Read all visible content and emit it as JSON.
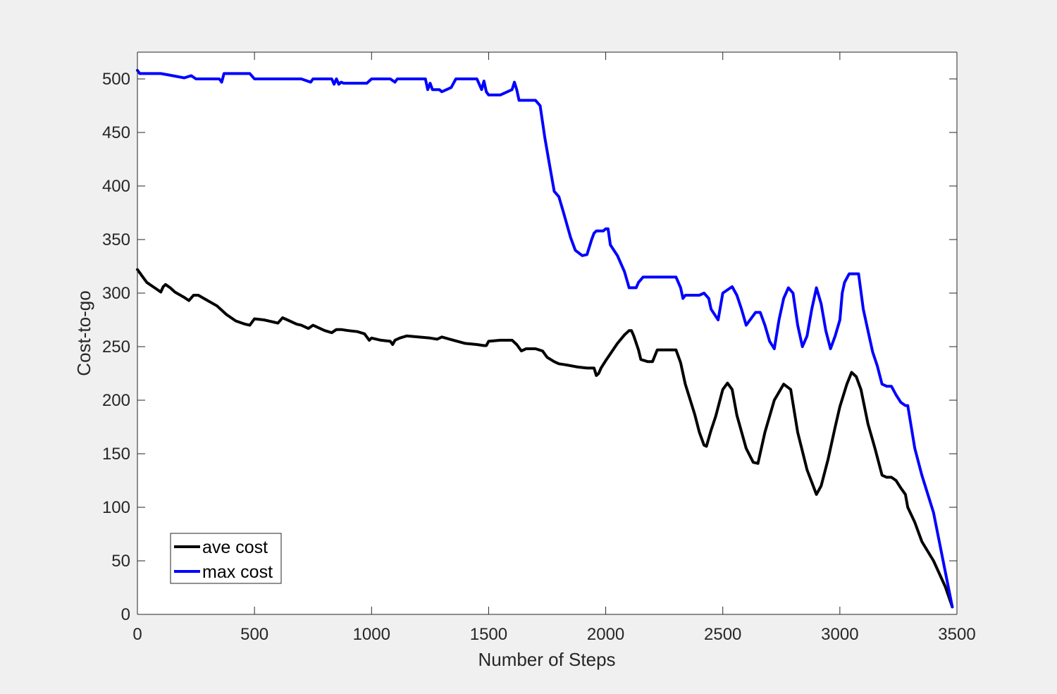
{
  "chart_data": {
    "type": "line",
    "title": "",
    "xlabel": "Number of Steps",
    "ylabel": "Cost-to-go",
    "xlim": [
      0,
      3500
    ],
    "ylim": [
      0,
      525
    ],
    "xticks": [
      0,
      500,
      1000,
      1500,
      2000,
      2500,
      3000,
      3500
    ],
    "yticks": [
      0,
      50,
      100,
      150,
      200,
      250,
      300,
      350,
      400,
      450,
      500
    ],
    "grid": false,
    "legend_position": "bottom-left",
    "series": [
      {
        "name": "ave cost",
        "color": "#000000",
        "x": [
          0,
          20,
          40,
          60,
          80,
          100,
          110,
          120,
          140,
          160,
          200,
          220,
          240,
          260,
          300,
          340,
          380,
          420,
          460,
          480,
          500,
          540,
          580,
          600,
          620,
          640,
          680,
          700,
          730,
          750,
          780,
          800,
          830,
          850,
          870,
          900,
          940,
          970,
          980,
          990,
          1000,
          1040,
          1080,
          1090,
          1100,
          1120,
          1150,
          1200,
          1250,
          1280,
          1300,
          1350,
          1400,
          1450,
          1480,
          1490,
          1500,
          1550,
          1600,
          1620,
          1640,
          1660,
          1700,
          1730,
          1750,
          1780,
          1800,
          1830,
          1880,
          1920,
          1950,
          1960,
          1970,
          1980,
          2000,
          2050,
          2080,
          2100,
          2110,
          2120,
          2140,
          2150,
          2180,
          2200,
          2220,
          2250,
          2300,
          2320,
          2340,
          2380,
          2400,
          2420,
          2430,
          2450,
          2470,
          2500,
          2520,
          2540,
          2560,
          2600,
          2630,
          2650,
          2680,
          2720,
          2760,
          2790,
          2820,
          2860,
          2900,
          2920,
          2950,
          2980,
          3000,
          3030,
          3050,
          3070,
          3090,
          3120,
          3150,
          3180,
          3200,
          3220,
          3240,
          3260,
          3280,
          3290,
          3320,
          3350,
          3400,
          3450,
          3480
        ],
        "values": [
          322,
          316,
          310,
          307,
          304,
          301,
          306,
          308,
          305,
          301,
          296,
          293,
          298,
          298,
          293,
          288,
          280,
          274,
          271,
          270,
          276,
          275,
          273,
          272,
          277,
          275,
          271,
          270,
          267,
          270,
          267,
          265,
          263,
          266,
          266,
          265,
          264,
          262,
          259,
          256,
          258,
          256,
          255,
          252,
          256,
          258,
          260,
          259,
          258,
          257,
          259,
          256,
          253,
          252,
          251,
          251,
          255,
          256,
          256,
          252,
          246,
          248,
          248,
          246,
          240,
          236,
          234,
          233,
          231,
          230,
          230,
          223,
          225,
          230,
          237,
          253,
          261,
          265,
          265,
          260,
          247,
          238,
          236,
          236,
          247,
          247,
          247,
          235,
          215,
          187,
          170,
          158,
          157,
          172,
          185,
          210,
          216,
          210,
          186,
          155,
          142,
          141,
          170,
          200,
          215,
          210,
          170,
          135,
          112,
          120,
          145,
          175,
          194,
          215,
          226,
          222,
          210,
          178,
          155,
          130,
          128,
          128,
          125,
          118,
          112,
          100,
          86,
          68,
          50,
          26,
          7
        ]
      },
      {
        "name": "max cost",
        "color": "#0000ff",
        "x": [
          0,
          10,
          30,
          100,
          150,
          200,
          230,
          250,
          300,
          350,
          360,
          370,
          400,
          450,
          480,
          500,
          550,
          600,
          650,
          700,
          740,
          750,
          800,
          830,
          840,
          850,
          860,
          870,
          880,
          900,
          950,
          980,
          1000,
          1020,
          1050,
          1080,
          1100,
          1110,
          1150,
          1200,
          1230,
          1240,
          1250,
          1260,
          1290,
          1300,
          1340,
          1360,
          1370,
          1380,
          1400,
          1450,
          1470,
          1480,
          1490,
          1500,
          1510,
          1520,
          1550,
          1600,
          1610,
          1620,
          1630,
          1650,
          1700,
          1720,
          1740,
          1760,
          1780,
          1800,
          1820,
          1850,
          1870,
          1900,
          1920,
          1940,
          1950,
          1960,
          1970,
          1990,
          2000,
          2010,
          2020,
          2050,
          2080,
          2100,
          2110,
          2130,
          2140,
          2160,
          2200,
          2220,
          2250,
          2300,
          2320,
          2330,
          2340,
          2360,
          2400,
          2420,
          2440,
          2450,
          2480,
          2500,
          2540,
          2560,
          2580,
          2600,
          2640,
          2660,
          2680,
          2700,
          2720,
          2740,
          2760,
          2780,
          2800,
          2820,
          2840,
          2860,
          2880,
          2900,
          2920,
          2940,
          2960,
          2980,
          3000,
          3010,
          3020,
          3040,
          3080,
          3100,
          3120,
          3140,
          3160,
          3180,
          3200,
          3220,
          3240,
          3260,
          3280,
          3290,
          3320,
          3350,
          3400,
          3450,
          3480
        ],
        "values": [
          508,
          505,
          505,
          505,
          503,
          501,
          503,
          500,
          500,
          500,
          497,
          505,
          505,
          505,
          505,
          500,
          500,
          500,
          500,
          500,
          497,
          500,
          500,
          500,
          495,
          500,
          495,
          497,
          496,
          496,
          496,
          496,
          500,
          500,
          500,
          500,
          497,
          500,
          500,
          500,
          500,
          490,
          496,
          490,
          490,
          488,
          492,
          500,
          500,
          500,
          500,
          500,
          490,
          498,
          488,
          485,
          485,
          485,
          485,
          490,
          497,
          490,
          480,
          480,
          480,
          475,
          445,
          420,
          395,
          390,
          375,
          352,
          340,
          335,
          336,
          350,
          356,
          358,
          358,
          358,
          360,
          360,
          345,
          335,
          320,
          305,
          305,
          305,
          310,
          315,
          315,
          315,
          315,
          315,
          305,
          295,
          298,
          298,
          298,
          300,
          295,
          285,
          275,
          300,
          306,
          298,
          285,
          270,
          282,
          282,
          270,
          255,
          248,
          275,
          295,
          305,
          300,
          270,
          250,
          260,
          285,
          305,
          290,
          265,
          248,
          260,
          275,
          300,
          310,
          318,
          318,
          285,
          265,
          245,
          232,
          215,
          213,
          213,
          205,
          198,
          195,
          195,
          155,
          130,
          95,
          40,
          7
        ]
      }
    ]
  }
}
